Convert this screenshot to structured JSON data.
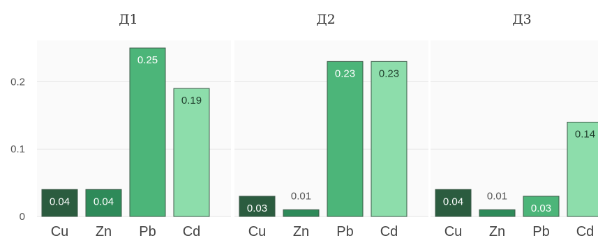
{
  "chart_data": [
    {
      "type": "bar",
      "title": "Д1",
      "categories": [
        "Cu",
        "Zn",
        "Pb",
        "Cd"
      ],
      "values": [
        0.04,
        0.04,
        0.25,
        0.19
      ],
      "labels": [
        "0.04",
        "0.04",
        "0.25",
        "0.19"
      ],
      "ylim": [
        0,
        0.25
      ],
      "yticks": [
        "0",
        "0.1",
        "0.2"
      ],
      "grid": true
    },
    {
      "type": "bar",
      "title": "Д2",
      "categories": [
        "Cu",
        "Zn",
        "Pb",
        "Cd"
      ],
      "values": [
        0.03,
        0.01,
        0.23,
        0.23
      ],
      "labels": [
        "0.03",
        "0.01",
        "0.23",
        "0.23"
      ],
      "ylim": [
        0,
        0.25
      ],
      "grid": true
    },
    {
      "type": "bar",
      "title": "Д3",
      "categories": [
        "Cu",
        "Zn",
        "Pb",
        "Cd"
      ],
      "values": [
        0.04,
        0.01,
        0.03,
        0.14
      ],
      "labels": [
        "0.04",
        "0.01",
        "0.03",
        "0.14"
      ],
      "ylim": [
        0,
        0.25
      ],
      "grid": true
    }
  ],
  "colors": {
    "Cu": "#2b5c3f",
    "Zn": "#2e8a59",
    "Pb": "#4cb579",
    "Cd": "#8dddab"
  }
}
